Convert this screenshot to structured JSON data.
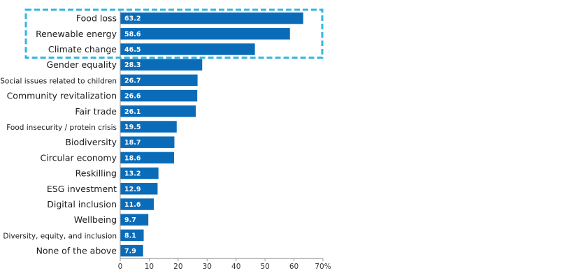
{
  "chart_data": {
    "type": "bar",
    "orientation": "horizontal",
    "categories": [
      "Food loss",
      "Renewable energy",
      "Climate change",
      "Gender equality",
      "Social issues related to children",
      "Community revitalization",
      "Fair trade",
      "Food insecurity / protein crisis",
      "Biodiversity",
      "Circular economy",
      "Reskilling",
      "ESG investment",
      "Digital inclusion",
      "Wellbeing",
      "Diversity, equity, and inclusion",
      "None of the above"
    ],
    "values": [
      63.2,
      58.6,
      46.5,
      28.3,
      26.7,
      26.6,
      26.1,
      19.5,
      18.7,
      18.6,
      13.2,
      12.9,
      11.6,
      9.7,
      8.1,
      7.9
    ],
    "value_labels": [
      "63.2",
      "58.6",
      "46.5",
      "28.3",
      "26.7",
      "26.6",
      "26.1",
      "19.5",
      "18.7",
      "18.6",
      "13.2",
      "12.9",
      "11.6",
      "9.7",
      "8.1",
      "7.9"
    ],
    "xlim": [
      0,
      70
    ],
    "x_ticks": [
      "0",
      "10",
      "20",
      "30",
      "40",
      "50",
      "60",
      "70%"
    ],
    "x_tick_values": [
      0,
      10,
      20,
      30,
      40,
      50,
      60,
      70
    ],
    "title": "",
    "xlabel": "",
    "ylabel": "",
    "grid": false,
    "highlighted_categories": [
      "Food loss",
      "Renewable energy",
      "Climate change"
    ],
    "colors": {
      "bar": "#0a6cb8",
      "highlight_border": "#33b5e0",
      "axis": "#999999"
    }
  }
}
